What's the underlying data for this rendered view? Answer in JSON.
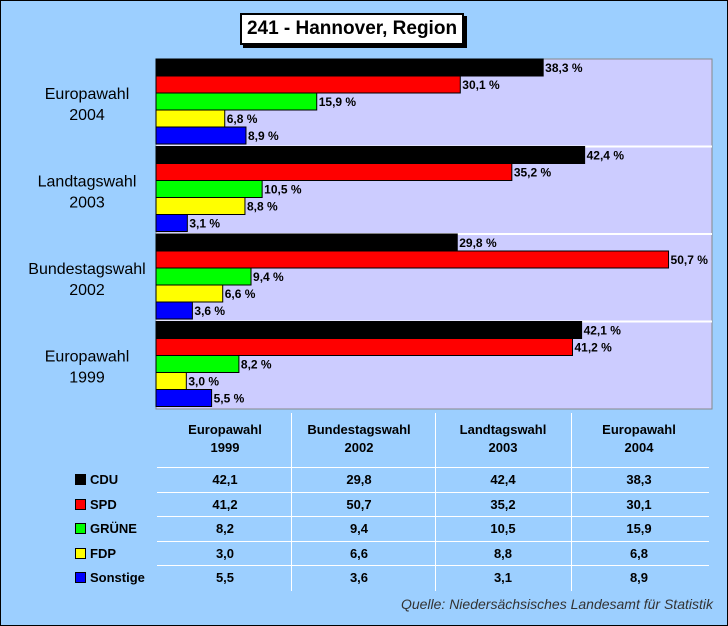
{
  "chart_data": {
    "type": "bar",
    "orientation": "horizontal",
    "title": "241 - Hannover, Region",
    "categories": [
      "Europawahl 1999",
      "Bundestagswahl 2002",
      "Landtagswahl 2003",
      "Europawahl 2004"
    ],
    "category_lines": [
      [
        "Europawahl",
        "1999"
      ],
      [
        "Bundestagswahl",
        "2002"
      ],
      [
        "Landtagswahl",
        "2003"
      ],
      [
        "Europawahl",
        "2004"
      ]
    ],
    "xlim": [
      0,
      55
    ],
    "unit": "%",
    "series": [
      {
        "name": "CDU",
        "color": "#000000",
        "values": [
          42.1,
          29.8,
          42.4,
          38.3
        ],
        "labels": [
          "42,1 %",
          "29,8 %",
          "42,4 %",
          "38,3 %"
        ]
      },
      {
        "name": "SPD",
        "color": "#ff0000",
        "values": [
          41.2,
          50.7,
          35.2,
          30.1
        ],
        "labels": [
          "41,2 %",
          "50,7 %",
          "35,2 %",
          "30,1 %"
        ]
      },
      {
        "name": "GRÜNE",
        "color": "#00ff00",
        "values": [
          8.2,
          9.4,
          10.5,
          15.9
        ],
        "labels": [
          "8,2 %",
          "9,4 %",
          "10,5 %",
          "15,9 %"
        ]
      },
      {
        "name": "FDP",
        "color": "#ffff00",
        "values": [
          3.0,
          6.6,
          8.8,
          6.8
        ],
        "labels": [
          "3,0 %",
          "6,6 %",
          "8,8 %",
          "6,8 %"
        ]
      },
      {
        "name": "Sonstige",
        "color": "#0000ff",
        "values": [
          5.5,
          3.6,
          3.1,
          8.9
        ],
        "labels": [
          "5,5 %",
          "3,6 %",
          "3,1 %",
          "8,9 %"
        ]
      }
    ],
    "table": {
      "headers": [
        [
          "Europawahl",
          "1999"
        ],
        [
          "Bundestagswahl",
          "2002"
        ],
        [
          "Landtagswahl",
          "2003"
        ],
        [
          "Europawahl",
          "2004"
        ]
      ],
      "rows": [
        {
          "label": "CDU",
          "color": "#000000",
          "cells": [
            "42,1",
            "29,8",
            "42,4",
            "38,3"
          ]
        },
        {
          "label": "SPD",
          "color": "#ff0000",
          "cells": [
            "41,2",
            "50,7",
            "35,2",
            "30,1"
          ]
        },
        {
          "label": "GRÜNE",
          "color": "#00ff00",
          "cells": [
            "8,2",
            "9,4",
            "10,5",
            "15,9"
          ]
        },
        {
          "label": "FDP",
          "color": "#ffff00",
          "cells": [
            "3,0",
            "6,6",
            "8,8",
            "6,8"
          ]
        },
        {
          "label": "Sonstige",
          "color": "#0000ff",
          "cells": [
            "5,5",
            "3,6",
            "3,1",
            "8,9"
          ]
        }
      ]
    },
    "source": "Quelle: Niedersächsisches Landesamt für Statistik"
  }
}
